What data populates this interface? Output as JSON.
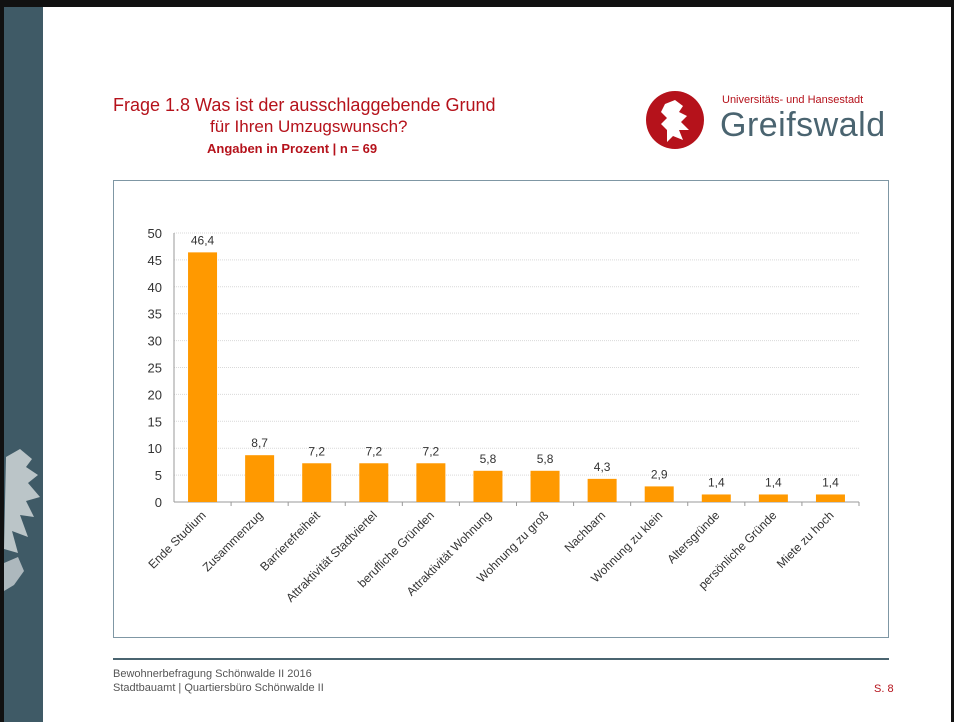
{
  "title": {
    "line1": "Frage 1.8 Was ist der ausschlaggebende Grund",
    "line2": "für Ihren Umzugswunsch?",
    "subtitle": "Angaben in Prozent | n = 69"
  },
  "logo": {
    "subtitle": "Universitäts- und Hansestadt",
    "name": "Greifswald",
    "icon": "griffin-seal-icon"
  },
  "footer": {
    "line1": "Bewohnerbefragung Schönwalde II 2016",
    "line2": "Stadtbauamt | Quartiersbüro Schönwalde II",
    "page": "S. 8"
  },
  "colors": {
    "bar": "#ff9900",
    "accent_red": "#b5121b",
    "sidebar": "#3f5a66"
  },
  "chart_data": {
    "type": "bar",
    "categories": [
      "Ende Studium",
      "Zusammenzug",
      "Barrierefreiheit",
      "Attraktivität Stadtviertel",
      "berufliche Gründen",
      "Attraktivität Wohnung",
      "Wohnung zu groß",
      "Nachbarn",
      "Wohnung zu klein",
      "Altersgründe",
      "persönliche Gründe",
      "Miete zu hoch"
    ],
    "values": [
      46.4,
      8.7,
      7.2,
      7.2,
      7.2,
      5.8,
      5.8,
      4.3,
      2.9,
      1.4,
      1.4,
      1.4
    ],
    "value_labels": [
      "46,4",
      "8,7",
      "7,2",
      "7,2",
      "7,2",
      "5,8",
      "5,8",
      "4,3",
      "2,9",
      "1,4",
      "1,4",
      "1,4"
    ],
    "yticks": [
      "0",
      "5",
      "10",
      "15",
      "20",
      "25",
      "30",
      "35",
      "40",
      "45",
      "50"
    ],
    "ylim": [
      0,
      50
    ],
    "grid": true,
    "legend": "none"
  }
}
